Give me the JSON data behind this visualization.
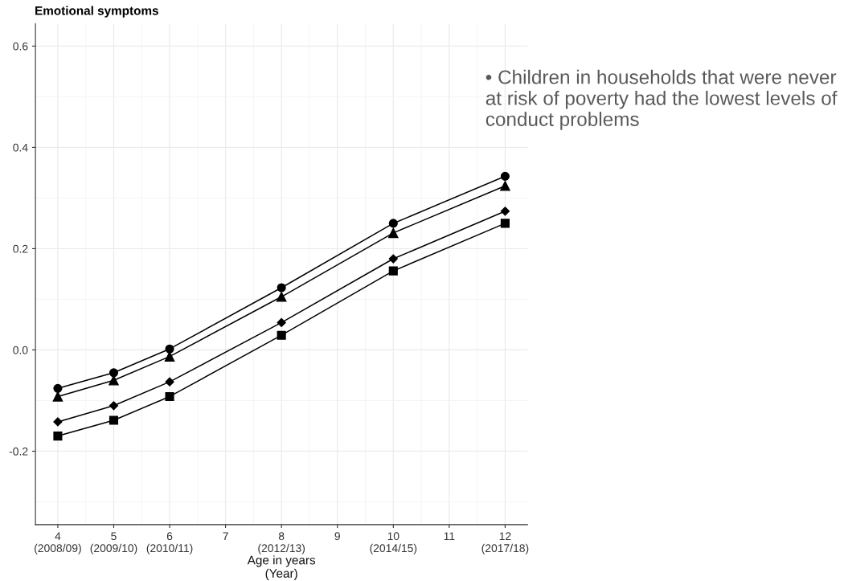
{
  "chart_data": {
    "type": "line",
    "title": "Emotional symptoms",
    "xlabel": "Age in years\n(Year)",
    "x": [
      4,
      5,
      6,
      8,
      10,
      12
    ],
    "series": [
      {
        "color": "#000000",
        "marker": "circle",
        "values": [
          -0.076,
          -0.045,
          0.002,
          0.123,
          0.25,
          0.343
        ]
      },
      {
        "color": "#000000",
        "marker": "triangle",
        "values": [
          -0.092,
          -0.06,
          -0.013,
          0.105,
          0.231,
          0.324
        ]
      },
      {
        "color": "#000000",
        "marker": "diamond",
        "values": [
          -0.142,
          -0.11,
          -0.063,
          0.054,
          0.18,
          0.274
        ]
      },
      {
        "color": "#000000",
        "marker": "square",
        "values": [
          -0.17,
          -0.139,
          -0.092,
          0.029,
          0.156,
          0.25
        ]
      }
    ],
    "xlim": [
      3.6,
      12.4
    ],
    "xticks": [
      {
        "value": 4,
        "label": "4\n(2008/09)"
      },
      {
        "value": 5,
        "label": "5\n(2009/10)"
      },
      {
        "value": 6,
        "label": "6\n(2010/11)"
      },
      7,
      {
        "value": 8,
        "label": "8\n(2012/13)"
      },
      9,
      {
        "value": 10,
        "label": "10\n(2014/15)"
      },
      11,
      {
        "value": 12,
        "label": "12\n(2017/18)"
      }
    ],
    "ylim": [
      -0.345,
      0.644
    ],
    "yticks": [
      {
        "value": -0.2,
        "label": "-0.2"
      },
      {
        "value": 0.0,
        "label": "0.0"
      },
      {
        "value": 0.2,
        "label": "0.2"
      },
      {
        "value": 0.4,
        "label": "0.4"
      },
      {
        "value": 0.6,
        "label": "0.6"
      }
    ],
    "grid": true,
    "line_style": "solid",
    "annotations": [
      "• Children in households that were never at risk of poverty had the lowest levels of conduct problems"
    ]
  }
}
